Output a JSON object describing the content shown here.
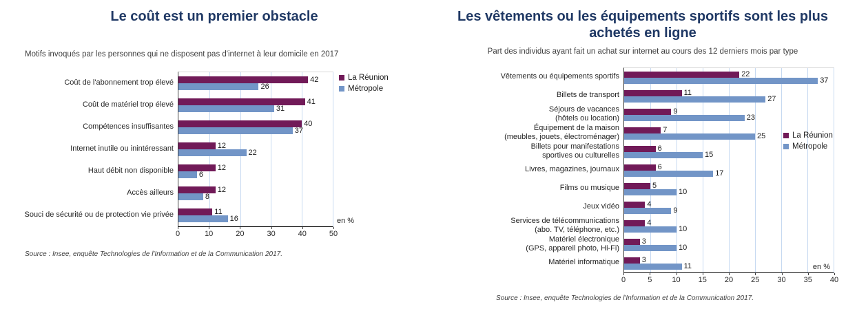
{
  "chart_data": [
    {
      "type": "bar",
      "orientation": "horizontal",
      "title": "Le coût est un premier obstacle",
      "subtitle": "Motifs invoqués par les personnes qui ne disposent pas d'internet à leur domicile en 2017",
      "categories": [
        "Coût de l'abonnement trop élevé",
        "Coût de matériel trop élevé",
        "Compétences insuffisantes",
        "Internet inutile ou inintéressant",
        "Haut débit non disponible",
        "Accès ailleurs",
        "Souci de sécurité ou de protection vie privée"
      ],
      "series": [
        {
          "name": "La Réunion",
          "color": "#711A58",
          "values": [
            42,
            41,
            40,
            12,
            12,
            12,
            11
          ]
        },
        {
          "name": "Métropole",
          "color": "#7295C7",
          "values": [
            26,
            31,
            37,
            22,
            6,
            8,
            16
          ]
        }
      ],
      "xlim": [
        0,
        50
      ],
      "xticks": [
        0,
        10,
        20,
        30,
        40,
        50
      ],
      "unit_label": "en %",
      "grid": true,
      "legend_position": "outside-top-right",
      "source": "Source : Insee, enquête Technologies de l'Information et de la Communication 2017."
    },
    {
      "type": "bar",
      "orientation": "horizontal",
      "title": "Les vêtements ou les équipements sportifs sont les plus achetés en ligne",
      "subtitle": "Part des individus ayant fait un achat sur internet au cours des 12 derniers mois par type",
      "categories": [
        "Vêtements ou équipements sportifs",
        "Billets de transport",
        "Séjours de vacances\n(hôtels ou location)",
        "Équipement de la maison\n(meubles, jouets, électroménager)",
        "Billets pour manifestations\nsportives ou culturelles",
        "Livres, magazines, journaux",
        "Films ou musique",
        "Jeux vidéo",
        "Services de télécommunications\n(abo. TV, téléphone, etc.)",
        "Matériel électronique\n(GPS, appareil photo, Hi-Fi)",
        "Matériel informatique"
      ],
      "series": [
        {
          "name": "La Réunion",
          "color": "#711A58",
          "values": [
            22,
            11,
            9,
            7,
            6,
            6,
            5,
            4,
            4,
            3,
            3
          ]
        },
        {
          "name": "Métropole",
          "color": "#7295C7",
          "values": [
            37,
            27,
            23,
            25,
            15,
            17,
            10,
            9,
            10,
            10,
            11
          ]
        }
      ],
      "xlim": [
        0,
        40
      ],
      "xticks": [
        0,
        5,
        10,
        15,
        20,
        25,
        30,
        35,
        40
      ],
      "unit_label": "en %",
      "grid": true,
      "legend_position": "inside-middle-right",
      "source": "Source : Insee, enquête Technologies de l'Information et de la Communication 2017."
    }
  ],
  "colors": {
    "title": "#1F3864",
    "la_reunion": "#711A58",
    "metropole": "#7295C7",
    "gridline": "#C6D9F1",
    "axis": "#000000",
    "text": "#262626"
  }
}
